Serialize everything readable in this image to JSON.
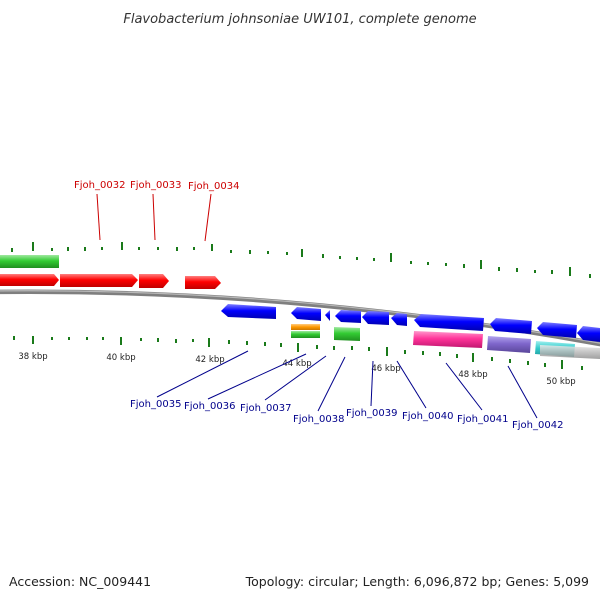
{
  "title": "Flavobacterium johnsoniae UW101, complete genome",
  "footer": {
    "accession": "Accession: NC_009441",
    "topology": "Topology: circular; Length: 6,096,872 bp; Genes: 5,099"
  },
  "scale_labels": [
    "38 kbp",
    "40 kbp",
    "42 kbp",
    "44 kbp",
    "46 kbp",
    "48 kbp",
    "50 kbp"
  ],
  "top_gene_labels": [
    "Fjoh_0032",
    "Fjoh_0033",
    "Fjoh_0034"
  ],
  "bottom_gene_labels": [
    "Fjoh_0035",
    "Fjoh_0036",
    "Fjoh_0037",
    "Fjoh_0038",
    "Fjoh_0039",
    "Fjoh_0040",
    "Fjoh_0041",
    "Fjoh_0042"
  ],
  "colors": {
    "forward_strand": "#ff0000",
    "reverse_strand": "#0000ff",
    "backbone": "#7f7f7f",
    "gc_skew_ticks": "#1a7a1a",
    "label_forward": "#cc0000",
    "label_reverse": "#00008b",
    "feature_green": "#33cc33",
    "feature_orange": "#ff9900",
    "feature_magenta": "#ff3399",
    "feature_purple": "#7f66cc",
    "feature_cyan": "#33cccc",
    "feature_grey": "#bfbfbf"
  }
}
